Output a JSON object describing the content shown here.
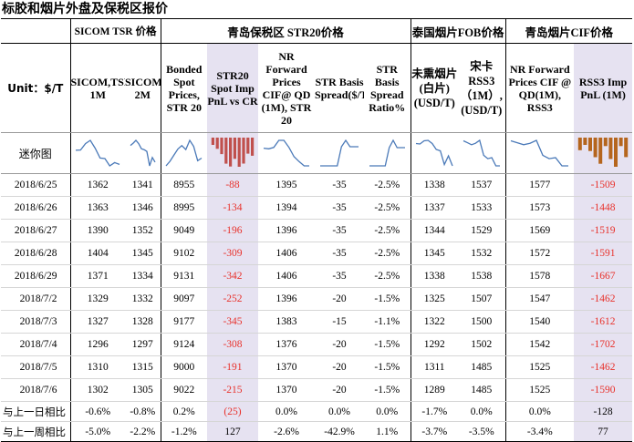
{
  "title": "标胶和烟片外盘及保税区报价",
  "groups": {
    "sicom": "SICOM TSR 价格",
    "str20": "青岛保税区 STR20价格",
    "thai": "泰国烟片FOB价格",
    "qd": "青岛烟片CIF价格"
  },
  "unit_label": "Unit：$/T",
  "mini_label": "迷你图",
  "columns": [
    "SICOM,TSR, 1M",
    "SICOM,TSR, 2M",
    "Bonded Spot Prices, STR 20",
    "STR20 Spot Imp PnL vs CR",
    "NR Forward Prices CIF@ QD (1M), STR 20",
    "STR Basis Spread($/T)",
    "STR Basis Spread Ratio%",
    "未熏烟片(白片) (USD/T)",
    "宋卡 RSS3 （1M）,(USD/T)",
    "NR Forward Prices CIF @ QD(1M), RSS3",
    "RSS3 Imp PnL (1M)"
  ],
  "rows": [
    {
      "date": "2018/6/25",
      "v": [
        "1362",
        "1341",
        "8955",
        "-88",
        "1395",
        "-35",
        "-2.5%",
        "1338",
        "1537",
        "1577",
        "-1509"
      ]
    },
    {
      "date": "2018/6/26",
      "v": [
        "1363",
        "1346",
        "8995",
        "-134",
        "1394",
        "-35",
        "-2.5%",
        "1337",
        "1533",
        "1573",
        "-1448"
      ]
    },
    {
      "date": "2018/6/27",
      "v": [
        "1390",
        "1352",
        "9049",
        "-196",
        "1396",
        "-35",
        "-2.5%",
        "1344",
        "1529",
        "1569",
        "-1519"
      ]
    },
    {
      "date": "2018/6/28",
      "v": [
        "1404",
        "1345",
        "9102",
        "-309",
        "1406",
        "-35",
        "-2.5%",
        "1345",
        "1532",
        "1572",
        "-1591"
      ]
    },
    {
      "date": "2018/6/29",
      "v": [
        "1371",
        "1334",
        "9131",
        "-342",
        "1406",
        "-35",
        "-2.5%",
        "1338",
        "1538",
        "1578",
        "-1667"
      ]
    },
    {
      "date": "2018/7/2",
      "v": [
        "1329",
        "1332",
        "9097",
        "-252",
        "1396",
        "-20",
        "-1.5%",
        "1325",
        "1507",
        "1547",
        "-1462"
      ]
    },
    {
      "date": "2018/7/3",
      "v": [
        "1327",
        "1328",
        "9177",
        "-345",
        "1383",
        "-15",
        "-1.1%",
        "1322",
        "1500",
        "1540",
        "-1612"
      ]
    },
    {
      "date": "2018/7/4",
      "v": [
        "1296",
        "1297",
        "9124",
        "-308",
        "1376",
        "-20",
        "-1.5%",
        "1292",
        "1502",
        "1542",
        "-1702"
      ]
    },
    {
      "date": "2018/7/5",
      "v": [
        "1310",
        "1315",
        "9000",
        "-191",
        "1370",
        "-20",
        "-1.5%",
        "1311",
        "1485",
        "1525",
        "-1462"
      ]
    },
    {
      "date": "2018/7/6",
      "v": [
        "1302",
        "1305",
        "9022",
        "-215",
        "1370",
        "-20",
        "-1.5%",
        "1289",
        "1485",
        "1525",
        "-1590"
      ]
    }
  ],
  "changes": [
    {
      "label": "与上一日相比",
      "v": [
        "-0.6%",
        "-0.8%",
        "0.2%",
        "(25)",
        "0.0%",
        "0.0%",
        "0.0%",
        "-1.7%",
        "0.0%",
        "0.0%",
        "-128"
      ]
    },
    {
      "label": "与上一周相比",
      "v": [
        "-5.0%",
        "-2.2%",
        "-1.2%",
        "127",
        "-2.6%",
        "-42.9%",
        "1.1%",
        "-3.7%",
        "-3.5%",
        "-3.4%",
        "77"
      ]
    }
  ],
  "colors": {
    "negative_text": "#e8312b",
    "highlight_bg": "#e6e2f1",
    "sparkline": "#4a79b8",
    "str20_bars": "#c0504d",
    "rss3_bars": "#b5651d"
  }
}
